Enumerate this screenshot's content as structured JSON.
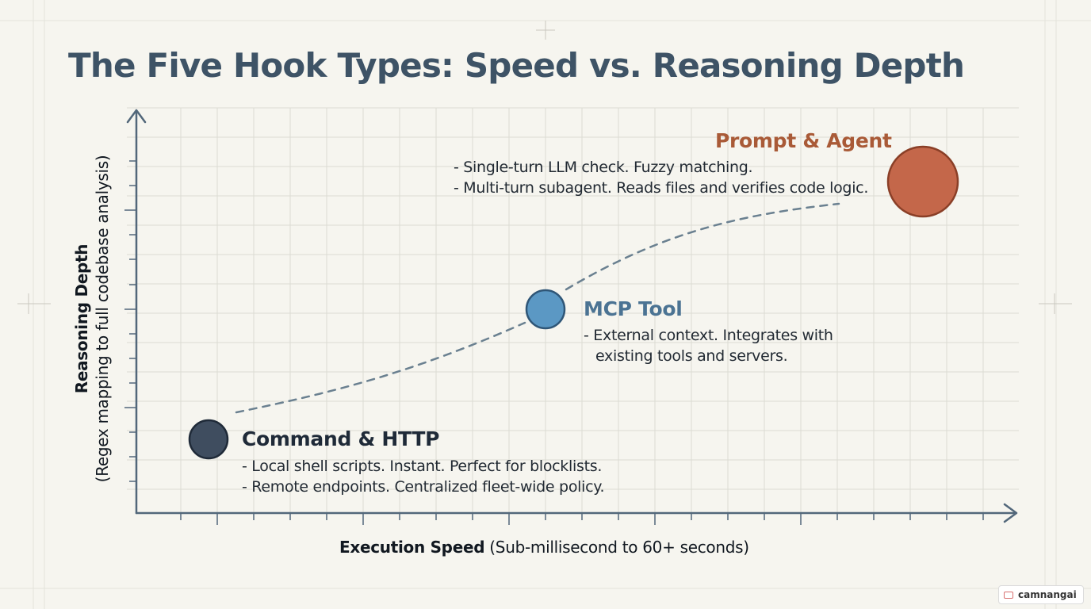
{
  "title": "The Five Hook Types: Speed vs. Reasoning Depth",
  "axes": {
    "x": {
      "label_bold": "Execution Speed",
      "label_rest": " (Sub-millisecond to 60+ seconds)"
    },
    "y": {
      "label_bold": "Reasoning Depth",
      "label_rest": "(Regex mapping to full codebase analysis)"
    }
  },
  "nodes": [
    {
      "id": "command-http",
      "name": "Command & HTTP",
      "lines": [
        "- Local shell scripts. Instant. Perfect for blocklists.",
        "- Remote endpoints. Centralized fleet-wide policy."
      ],
      "color": "#3f4d5f"
    },
    {
      "id": "mcp-tool",
      "name": "MCP Tool",
      "lines": [
        "- External context. Integrates with",
        "existing tools and servers."
      ],
      "color": "#5b98c4"
    },
    {
      "id": "prompt-agent",
      "name": "Prompt & Agent",
      "lines": [
        "- Single-turn LLM check. Fuzzy matching.",
        "- Multi-turn subagent. Reads files and verifies code logic."
      ],
      "color": "#c4674a"
    }
  ],
  "colors": {
    "axis": "#52677a",
    "grid": "#dcdcd3",
    "curve": "#6a8090",
    "background": "#f6f5ef"
  },
  "watermark": {
    "text": "camnangai",
    "icon": "ticket-icon"
  }
}
